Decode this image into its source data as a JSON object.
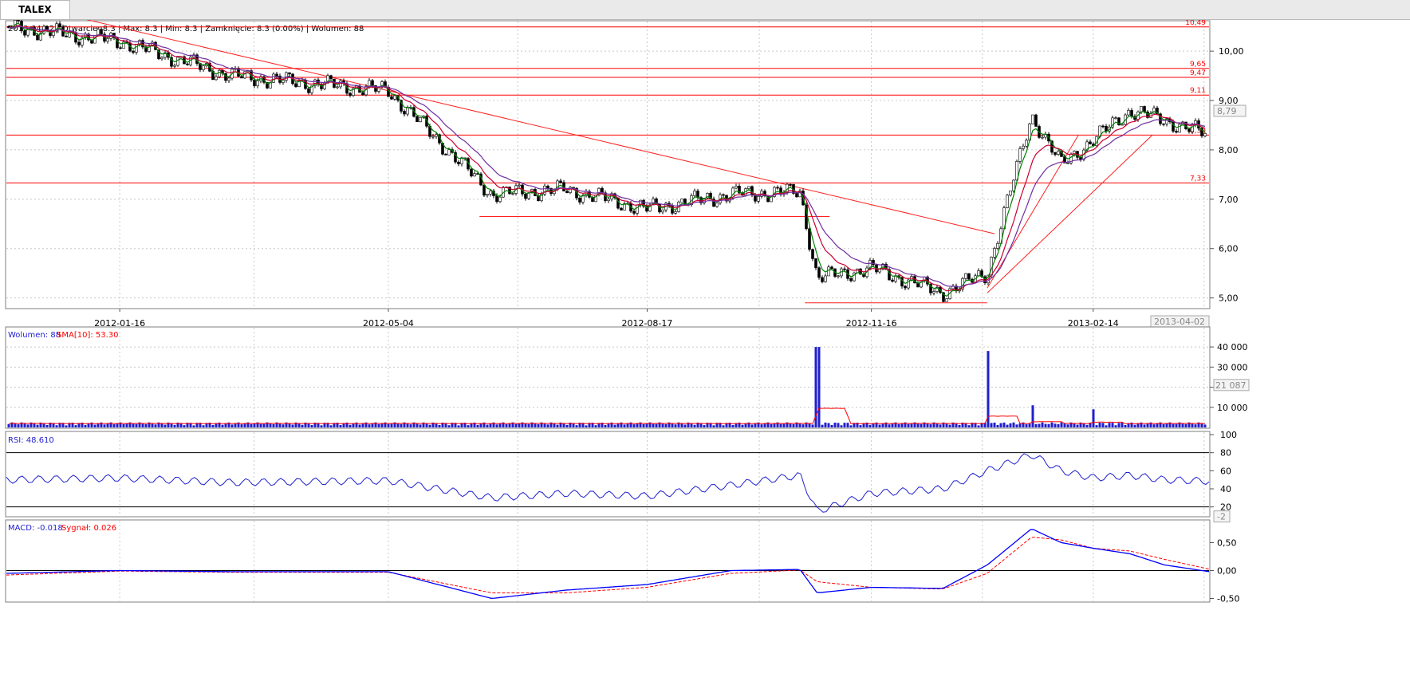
{
  "tab": {
    "label": "TALEX"
  },
  "price_panel": {
    "info": "2013-04-02 | Otwarcie: 8.3 | Max: 8.3 | Min: 8.3 | Zamknięcie: 8.3 (0.00%)   | Wolumen: 88",
    "yticks": [
      "10,00",
      "9,00",
      "8,00",
      "7,00",
      "6,00",
      "5,00"
    ],
    "xticks": [
      "2012-01-16",
      "2012-05-04",
      "2012-08-17",
      "2012-11-16",
      "2013-02-14"
    ],
    "last_value": "8,79",
    "current_date": "2013-04-02",
    "levels": [
      {
        "value": 10.49,
        "label": "10,49"
      },
      {
        "value": 9.65,
        "label": "9,65"
      },
      {
        "value": 9.47,
        "label": "9,47"
      },
      {
        "value": 9.11,
        "label": "9,11"
      },
      {
        "value": 8.3,
        "label": "8,30"
      },
      {
        "value": 7.33,
        "label": "7,33"
      }
    ]
  },
  "volume_panel": {
    "legend_main": "Wolumen: 88",
    "legend_sma": "SMA[10]: 53.30",
    "yticks": [
      "40 000",
      "30 000",
      "20 000",
      "10 000"
    ],
    "last_value": "21 087"
  },
  "rsi_panel": {
    "legend": "RSI: 48.610",
    "yticks": [
      "100",
      "80",
      "60",
      "40",
      "20"
    ],
    "last_value": "-2"
  },
  "macd_panel": {
    "legend_macd": "MACD: -0.018",
    "legend_signal": "Sygnał: 0.026",
    "yticks": [
      "0,50",
      "0,00",
      "-0,50"
    ]
  },
  "colors": {
    "macd": "#0000ff",
    "signal": "#ff0000",
    "sma": "#ff0000",
    "ema_fast": "#008000",
    "ema_mid": "#cc0033",
    "ema_slow": "#7030a0",
    "levels": "#ff0000",
    "volume": "#1f1fd0"
  },
  "chart_data": {
    "type": "line",
    "x_dates": [
      "2011-12-01",
      "2012-01-16",
      "2012-03-01",
      "2012-05-04",
      "2012-06-15",
      "2012-07-15",
      "2012-08-17",
      "2012-09-20",
      "2012-10-18",
      "2012-10-25",
      "2012-11-16",
      "2012-12-15",
      "2013-01-02",
      "2013-01-20",
      "2013-02-01",
      "2013-02-14",
      "2013-03-01",
      "2013-03-15",
      "2013-04-02"
    ],
    "series": [
      {
        "name": "Zamknięcie",
        "values": [
          10.5,
          10.2,
          9.5,
          9.2,
          7.1,
          7.2,
          6.8,
          7.1,
          7.15,
          5.4,
          5.6,
          5.1,
          5.5,
          8.7,
          7.7,
          8.2,
          8.8,
          8.6,
          8.3
        ]
      },
      {
        "name": "Wolumen",
        "values": [
          1000,
          1200,
          1500,
          1800,
          1300,
          1400,
          1200,
          1500,
          1200,
          40000,
          3000,
          1500,
          38000,
          11000,
          2000,
          9000,
          2000,
          1000,
          88
        ]
      },
      {
        "name": "RSI",
        "values": [
          50,
          52,
          47,
          49,
          30,
          35,
          32,
          44,
          55,
          15,
          35,
          40,
          60,
          78,
          60,
          52,
          55,
          50,
          48.61
        ]
      },
      {
        "name": "MACD",
        "values": [
          -0.05,
          0.0,
          -0.02,
          -0.02,
          -0.5,
          -0.35,
          -0.25,
          0.0,
          0.02,
          -0.4,
          -0.3,
          -0.32,
          0.1,
          0.75,
          0.5,
          0.4,
          0.3,
          0.1,
          -0.018
        ]
      },
      {
        "name": "Sygnał",
        "values": [
          -0.08,
          -0.01,
          -0.03,
          -0.03,
          -0.4,
          -0.4,
          -0.3,
          -0.05,
          0.01,
          -0.2,
          -0.3,
          -0.33,
          -0.05,
          0.6,
          0.55,
          0.4,
          0.35,
          0.2,
          0.026
        ]
      }
    ],
    "price_ylim": [
      4.8,
      10.6
    ],
    "volume_ylim": [
      0,
      44000
    ],
    "rsi_ylim": [
      10,
      100
    ],
    "macd_ylim": [
      -0.55,
      0.85
    ]
  }
}
